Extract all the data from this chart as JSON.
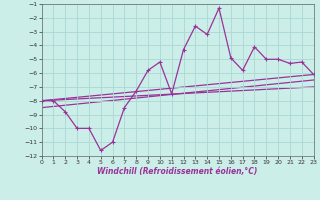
{
  "xlabel": "Windchill (Refroidissement éolien,°C)",
  "background_color": "#cceee8",
  "grid_color": "#aad8d4",
  "line_color": "#993399",
  "xlim": [
    0,
    23
  ],
  "ylim": [
    -12,
    -1
  ],
  "xticks": [
    0,
    1,
    2,
    3,
    4,
    5,
    6,
    7,
    8,
    9,
    10,
    11,
    12,
    13,
    14,
    15,
    16,
    17,
    18,
    19,
    20,
    21,
    22,
    23
  ],
  "yticks": [
    -1,
    -2,
    -3,
    -4,
    -5,
    -6,
    -7,
    -8,
    -9,
    -10,
    -11,
    -12
  ],
  "series": [
    [
      0,
      -8.0
    ],
    [
      1,
      -8.0
    ],
    [
      2,
      -8.8
    ],
    [
      3,
      -10.0
    ],
    [
      4,
      -10.0
    ],
    [
      5,
      -11.6
    ],
    [
      6,
      -11.0
    ],
    [
      7,
      -8.5
    ],
    [
      8,
      -7.3
    ],
    [
      9,
      -5.8
    ],
    [
      10,
      -5.2
    ],
    [
      11,
      -7.5
    ],
    [
      12,
      -4.3
    ],
    [
      13,
      -2.6
    ],
    [
      14,
      -3.2
    ],
    [
      15,
      -1.3
    ],
    [
      16,
      -4.9
    ],
    [
      17,
      -5.8
    ],
    [
      18,
      -4.1
    ],
    [
      19,
      -5.0
    ],
    [
      20,
      -5.0
    ],
    [
      21,
      -5.3
    ],
    [
      22,
      -5.2
    ],
    [
      23,
      -6.1
    ]
  ],
  "trend_lines": [
    [
      [
        0,
        -8.0
      ],
      [
        23,
        -6.1
      ]
    ],
    [
      [
        0,
        -8.0
      ],
      [
        23,
        -7.0
      ]
    ],
    [
      [
        0,
        -8.5
      ],
      [
        23,
        -6.5
      ]
    ]
  ]
}
